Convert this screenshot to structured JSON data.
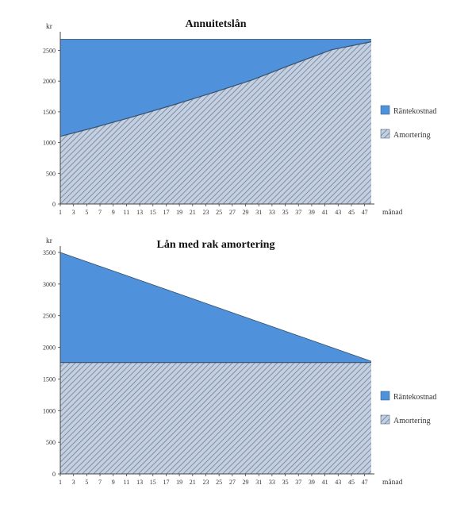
{
  "colors": {
    "interest": "#4f92db",
    "amortization_bg": "#c4d0e0",
    "hatch": "#6b7e9c",
    "axis": "#444444",
    "boundary": "#36506e"
  },
  "chart_data": [
    {
      "type": "area",
      "title": "Annuitetslån",
      "ylabel": "kr",
      "xlabel": "månad",
      "ylim": [
        0,
        2700
      ],
      "yticks": [
        0,
        500,
        1000,
        1500,
        2000,
        2500
      ],
      "xticks": [
        1,
        3,
        5,
        7,
        9,
        11,
        13,
        15,
        17,
        19,
        21,
        23,
        25,
        27,
        29,
        31,
        33,
        35,
        37,
        39,
        41,
        43,
        45,
        47
      ],
      "x": [
        1,
        48
      ],
      "stacked": true,
      "legend_position": "right",
      "series": [
        {
          "name": "Räntekostnad",
          "kind": "interest",
          "x": [
            1,
            6,
            12,
            18,
            24,
            30,
            36,
            42,
            48
          ],
          "values": [
            1580,
            1440,
            1260,
            1070,
            870,
            660,
            410,
            170,
            40
          ]
        },
        {
          "name": "Amortering",
          "kind": "amortization",
          "x": [
            1,
            6,
            12,
            18,
            24,
            30,
            36,
            42,
            48
          ],
          "values": [
            1100,
            1240,
            1420,
            1610,
            1810,
            2020,
            2270,
            2510,
            2640
          ]
        }
      ]
    },
    {
      "type": "area",
      "title": "Lån med rak amortering",
      "ylabel": "kr",
      "xlabel": "månad",
      "ylim": [
        0,
        3500
      ],
      "yticks": [
        0,
        500,
        1000,
        1500,
        2000,
        2500,
        3000,
        3500
      ],
      "xticks": [
        1,
        3,
        5,
        7,
        9,
        11,
        13,
        15,
        17,
        19,
        21,
        23,
        25,
        27,
        29,
        31,
        33,
        35,
        37,
        39,
        41,
        43,
        45,
        47
      ],
      "x": [
        1,
        48
      ],
      "stacked": true,
      "legend_position": "right",
      "series": [
        {
          "name": "Räntekostnad",
          "kind": "interest",
          "x": [
            1,
            48
          ],
          "values": [
            1740,
            20
          ]
        },
        {
          "name": "Amortering",
          "kind": "amortization",
          "x": [
            1,
            48
          ],
          "values": [
            1760,
            1760
          ]
        }
      ]
    }
  ]
}
